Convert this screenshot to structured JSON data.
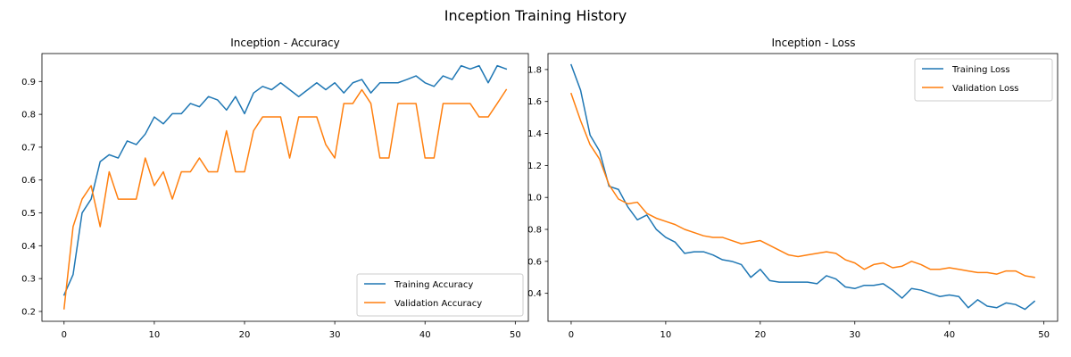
{
  "figure": {
    "title": "Inception Training History"
  },
  "chart_data": [
    {
      "type": "line",
      "title": "Inception - Accuracy",
      "xlabel": "",
      "ylabel": "",
      "xlim": [
        -2.45,
        51.45
      ],
      "ylim": [
        0.17,
        0.985
      ],
      "xticks": [
        0,
        10,
        20,
        30,
        40,
        50
      ],
      "yticks": [
        0.2,
        0.3,
        0.4,
        0.5,
        0.6,
        0.7,
        0.8,
        0.9
      ],
      "grid": false,
      "legend_position": "bottom-right",
      "x": [
        0,
        1,
        2,
        3,
        4,
        5,
        6,
        7,
        8,
        9,
        10,
        11,
        12,
        13,
        14,
        15,
        16,
        17,
        18,
        19,
        20,
        21,
        22,
        23,
        24,
        25,
        26,
        27,
        28,
        29,
        30,
        31,
        32,
        33,
        34,
        35,
        36,
        37,
        38,
        39,
        40,
        41,
        42,
        43,
        44,
        45,
        46,
        47,
        48,
        49
      ],
      "series": [
        {
          "name": "Training Accuracy",
          "color": "#1f77b4",
          "values": [
            0.25,
            0.312,
            0.5,
            0.542,
            0.656,
            0.677,
            0.667,
            0.719,
            0.708,
            0.74,
            0.792,
            0.771,
            0.802,
            0.802,
            0.833,
            0.823,
            0.854,
            0.844,
            0.813,
            0.854,
            0.802,
            0.865,
            0.885,
            0.875,
            0.896,
            0.875,
            0.854,
            0.875,
            0.896,
            0.875,
            0.896,
            0.865,
            0.896,
            0.906,
            0.865,
            0.896,
            0.896,
            0.896,
            0.906,
            0.917,
            0.896,
            0.885,
            0.917,
            0.906,
            0.948,
            0.938,
            0.948,
            0.896,
            0.948,
            0.938
          ]
        },
        {
          "name": "Validation Accuracy",
          "color": "#ff7f0e",
          "values": [
            0.208,
            0.458,
            0.542,
            0.583,
            0.458,
            0.625,
            0.542,
            0.542,
            0.542,
            0.667,
            0.583,
            0.625,
            0.542,
            0.625,
            0.625,
            0.667,
            0.625,
            0.625,
            0.75,
            0.625,
            0.625,
            0.75,
            0.792,
            0.792,
            0.792,
            0.667,
            0.792,
            0.792,
            0.792,
            0.708,
            0.667,
            0.833,
            0.833,
            0.875,
            0.833,
            0.667,
            0.667,
            0.833,
            0.833,
            0.833,
            0.667,
            0.667,
            0.833,
            0.833,
            0.833,
            0.833,
            0.792,
            0.792,
            0.833,
            0.875
          ]
        }
      ]
    },
    {
      "type": "line",
      "title": "Inception - Loss",
      "xlabel": "",
      "ylabel": "",
      "xlim": [
        -2.45,
        51.45
      ],
      "ylim": [
        0.225,
        1.9
      ],
      "xticks": [
        0,
        10,
        20,
        30,
        40,
        50
      ],
      "yticks": [
        0.4,
        0.6,
        0.8,
        1.0,
        1.2,
        1.4,
        1.6,
        1.8
      ],
      "grid": false,
      "legend_position": "top-right",
      "x": [
        0,
        1,
        2,
        3,
        4,
        5,
        6,
        7,
        8,
        9,
        10,
        11,
        12,
        13,
        14,
        15,
        16,
        17,
        18,
        19,
        20,
        21,
        22,
        23,
        24,
        25,
        26,
        27,
        28,
        29,
        30,
        31,
        32,
        33,
        34,
        35,
        36,
        37,
        38,
        39,
        40,
        41,
        42,
        43,
        44,
        45,
        46,
        47,
        48,
        49
      ],
      "series": [
        {
          "name": "Training Loss",
          "color": "#1f77b4",
          "values": [
            1.83,
            1.67,
            1.39,
            1.29,
            1.07,
            1.05,
            0.94,
            0.86,
            0.89,
            0.8,
            0.75,
            0.72,
            0.65,
            0.66,
            0.66,
            0.64,
            0.61,
            0.6,
            0.58,
            0.5,
            0.55,
            0.48,
            0.47,
            0.47,
            0.47,
            0.47,
            0.46,
            0.51,
            0.49,
            0.44,
            0.43,
            0.45,
            0.45,
            0.46,
            0.42,
            0.37,
            0.43,
            0.42,
            0.4,
            0.38,
            0.39,
            0.38,
            0.31,
            0.36,
            0.32,
            0.31,
            0.34,
            0.33,
            0.3,
            0.35
          ]
        },
        {
          "name": "Validation Loss",
          "color": "#ff7f0e",
          "values": [
            1.65,
            1.48,
            1.33,
            1.24,
            1.08,
            0.99,
            0.96,
            0.97,
            0.9,
            0.87,
            0.85,
            0.83,
            0.8,
            0.78,
            0.76,
            0.75,
            0.75,
            0.73,
            0.71,
            0.72,
            0.73,
            0.7,
            0.67,
            0.64,
            0.63,
            0.64,
            0.65,
            0.66,
            0.65,
            0.61,
            0.59,
            0.55,
            0.58,
            0.59,
            0.56,
            0.57,
            0.6,
            0.58,
            0.55,
            0.55,
            0.56,
            0.55,
            0.54,
            0.53,
            0.53,
            0.52,
            0.54,
            0.54,
            0.51,
            0.5
          ]
        }
      ]
    }
  ]
}
